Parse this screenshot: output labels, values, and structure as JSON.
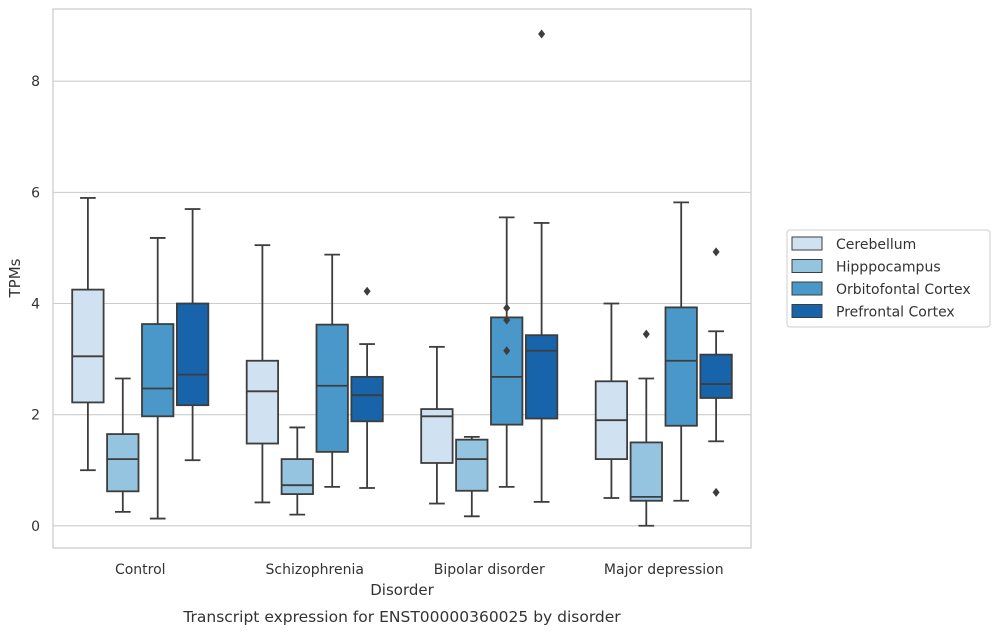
{
  "chart_data": {
    "type": "box",
    "xlabel": "Disorder",
    "ylabel": "TPMs",
    "caption": "Transcript expression for ENST00000360025 by disorder",
    "ylim": [
      -0.4,
      9.3
    ],
    "yticks": [
      0,
      2,
      4,
      6,
      8
    ],
    "grid": true,
    "legend_position": "right",
    "categories": [
      "Control",
      "Schizophrenia",
      "Bipolar disorder",
      "Major depression"
    ],
    "series": [
      {
        "name": "Cerebellum",
        "color": "#d0e1f2",
        "boxes": [
          {
            "whisker_low": 1.0,
            "q1": 2.22,
            "median": 3.05,
            "q3": 4.25,
            "whisker_high": 5.9,
            "outliers": []
          },
          {
            "whisker_low": 0.42,
            "q1": 1.48,
            "median": 2.42,
            "q3": 2.97,
            "whisker_high": 5.05,
            "outliers": []
          },
          {
            "whisker_low": 0.4,
            "q1": 1.13,
            "median": 1.97,
            "q3": 2.1,
            "whisker_high": 3.22,
            "outliers": []
          },
          {
            "whisker_low": 0.5,
            "q1": 1.2,
            "median": 1.9,
            "q3": 2.6,
            "whisker_high": 4.0,
            "outliers": []
          }
        ]
      },
      {
        "name": "Hipppocampus",
        "color": "#94c4df",
        "boxes": [
          {
            "whisker_low": 0.25,
            "q1": 0.62,
            "median": 1.2,
            "q3": 1.65,
            "whisker_high": 2.65,
            "outliers": []
          },
          {
            "whisker_low": 0.2,
            "q1": 0.57,
            "median": 0.73,
            "q3": 1.2,
            "whisker_high": 1.77,
            "outliers": []
          },
          {
            "whisker_low": 0.17,
            "q1": 0.63,
            "median": 1.2,
            "q3": 1.55,
            "whisker_high": 1.6,
            "outliers": []
          },
          {
            "whisker_low": 0.0,
            "q1": 0.45,
            "median": 0.52,
            "q3": 1.5,
            "whisker_high": 2.65,
            "outliers": [
              3.45
            ]
          }
        ]
      },
      {
        "name": "Orbitofontal Cortex",
        "color": "#4a98c9",
        "boxes": [
          {
            "whisker_low": 0.13,
            "q1": 1.97,
            "median": 2.47,
            "q3": 3.63,
            "whisker_high": 5.18,
            "outliers": []
          },
          {
            "whisker_low": 0.7,
            "q1": 1.33,
            "median": 2.52,
            "q3": 3.62,
            "whisker_high": 4.88,
            "outliers": []
          },
          {
            "whisker_low": 0.7,
            "q1": 1.82,
            "median": 2.68,
            "q3": 3.75,
            "whisker_high": 5.55,
            "outliers": [
              3.92,
              3.7,
              3.15
            ]
          },
          {
            "whisker_low": 0.45,
            "q1": 1.8,
            "median": 2.97,
            "q3": 3.93,
            "whisker_high": 5.82,
            "outliers": []
          }
        ]
      },
      {
        "name": "Prefrontal Cortex",
        "color": "#1764ab",
        "boxes": [
          {
            "whisker_low": 1.18,
            "q1": 2.17,
            "median": 2.72,
            "q3": 4.0,
            "whisker_high": 5.7,
            "outliers": []
          },
          {
            "whisker_low": 0.68,
            "q1": 1.88,
            "median": 2.35,
            "q3": 2.68,
            "whisker_high": 3.27,
            "outliers": [
              4.22
            ]
          },
          {
            "whisker_low": 0.43,
            "q1": 1.93,
            "median": 3.15,
            "q3": 3.43,
            "whisker_high": 5.45,
            "outliers": [
              8.85
            ]
          },
          {
            "whisker_low": 1.52,
            "q1": 2.3,
            "median": 2.55,
            "q3": 3.08,
            "whisker_high": 3.5,
            "outliers": [
              4.93,
              0.6
            ]
          }
        ]
      }
    ]
  }
}
